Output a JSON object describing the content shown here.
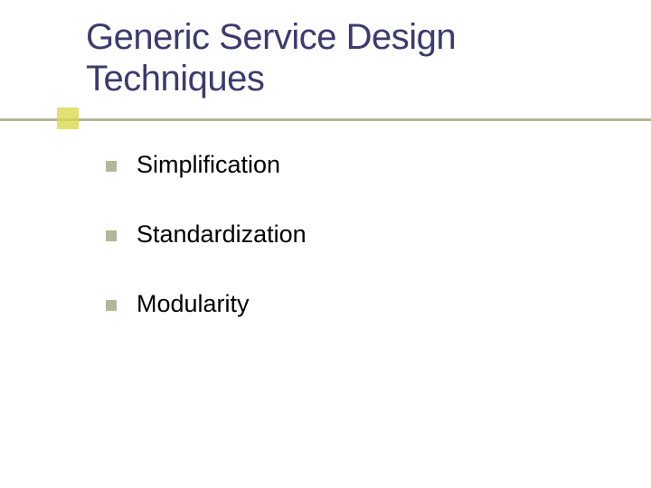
{
  "slide": {
    "title": "Generic Service Design Techniques",
    "title_color": "#3b3b6f",
    "title_fontsize": 40,
    "underline_color": "#b5b599",
    "accent_square_color": "#d9d94d",
    "background_color": "#ffffff",
    "bullets": [
      {
        "text": "Simplification"
      },
      {
        "text": "Standardization"
      },
      {
        "text": "Modularity"
      }
    ],
    "bullet_color": "#b5b599",
    "bullet_size": 12,
    "item_fontsize": 27,
    "item_text_color": "#000000",
    "item_spacing": 46
  }
}
